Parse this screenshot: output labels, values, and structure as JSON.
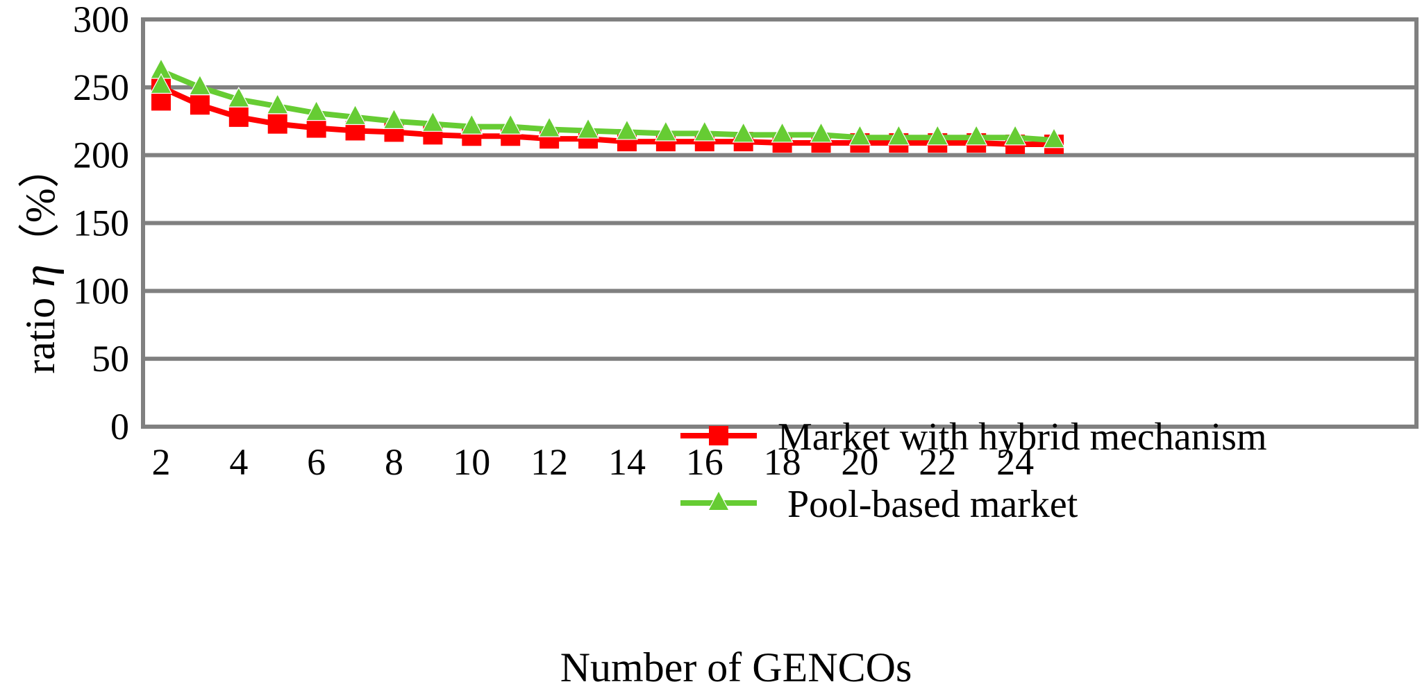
{
  "chart_data": {
    "type": "line",
    "title": "",
    "xlabel": "Number of GENCOs",
    "ylabel_prefix": "ratio ",
    "ylabel_symbol": "η",
    "ylabel_unit": "（%）",
    "xlim": [
      2,
      25
    ],
    "ylim": [
      0,
      300
    ],
    "x_ticks": [
      2,
      4,
      6,
      8,
      10,
      12,
      14,
      16,
      18,
      20,
      22,
      24
    ],
    "y_ticks": [
      0,
      50,
      100,
      150,
      200,
      250,
      300
    ],
    "grid": true,
    "legend_position": "bottom-right",
    "x": [
      2,
      3,
      4,
      5,
      6,
      7,
      8,
      9,
      10,
      11,
      12,
      13,
      14,
      15,
      16,
      17,
      18,
      19,
      20,
      21,
      22,
      23,
      24,
      25
    ],
    "series": [
      {
        "name": "Market with hybrid mechanism",
        "color": "#ff0000",
        "marker": "square",
        "values": [
          250,
          237,
          228,
          223,
          220,
          218,
          217,
          215,
          214,
          214,
          212,
          212,
          210,
          210,
          210,
          210,
          209,
          209,
          209,
          209,
          209,
          209,
          208,
          208
        ],
        "extra_markers": [
          {
            "x": 2,
            "y": 240
          }
        ]
      },
      {
        "name": "Pool-based market",
        "color": "#66cc33",
        "marker": "triangle",
        "values": [
          262,
          250,
          241,
          236,
          231,
          228,
          225,
          223,
          221,
          221,
          219,
          218,
          217,
          216,
          216,
          215,
          215,
          215,
          213,
          213,
          213,
          213,
          213,
          211
        ],
        "extra_markers": [
          {
            "x": 2,
            "y": 251
          }
        ]
      }
    ]
  }
}
